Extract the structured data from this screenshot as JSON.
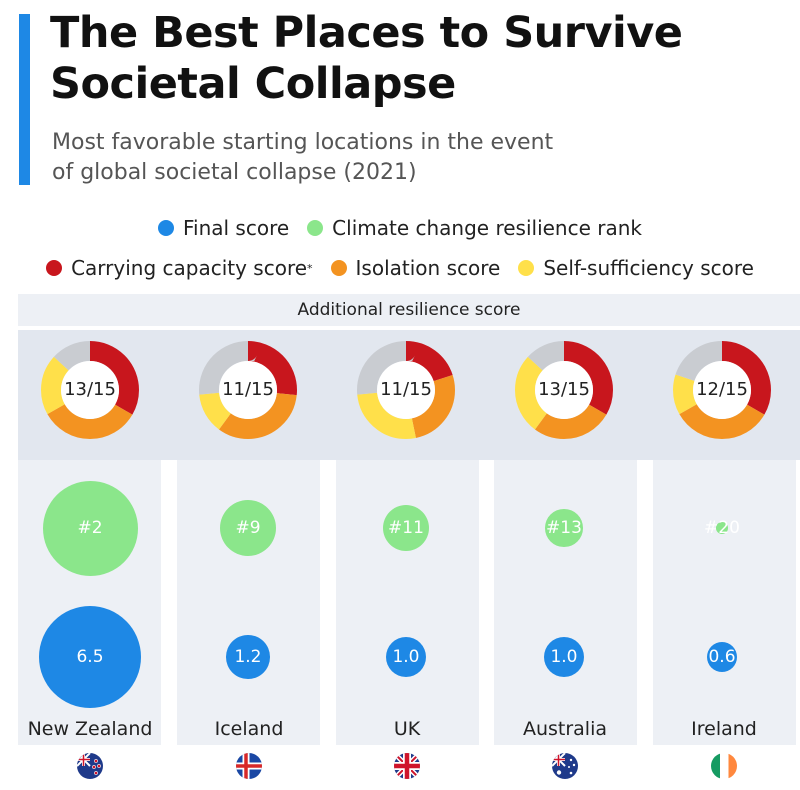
{
  "header": {
    "title_line1": "The Best Places to Survive",
    "title_line2": "Societal Collapse",
    "subtitle_line1": "Most favorable starting locations in the event",
    "subtitle_line2": "of global societal collapse (2021)"
  },
  "legend": {
    "final": "Final score",
    "climate": "Climate change resilience rank",
    "carrying": "Carrying capacity score",
    "carrying_mark": "*",
    "isolation": "Isolation score",
    "selfsufficiency": "Self-sufficiency score"
  },
  "colors": {
    "final": "#1e88e5",
    "climate": "#8be68b",
    "carrying": "#c8161d",
    "isolation": "#f39321",
    "selfsufficiency": "#ffe04a",
    "remainder": "#c9ccd1"
  },
  "section_label": "Additional resilience score",
  "chart_data": {
    "type": "bubble",
    "categories": [
      "New Zealand",
      "Iceland",
      "UK",
      "Australia",
      "Ireland"
    ],
    "resilience_score_max": 15,
    "series": [
      {
        "name": "Final score",
        "values": [
          6.5,
          1.2,
          1.0,
          1.0,
          0.6
        ],
        "labels": [
          "6.5",
          "1.2",
          "1.0",
          "1.0",
          "0.6"
        ]
      },
      {
        "name": "Climate change resilience rank",
        "values": [
          2,
          9,
          11,
          13,
          20
        ],
        "labels": [
          "#2",
          "#9",
          "#11",
          "#13",
          "#20"
        ]
      }
    ],
    "additional_resilience": [
      {
        "country": "New Zealand",
        "label": "13/15",
        "carrying": 5,
        "isolation": 5,
        "selfsufficiency": 3
      },
      {
        "country": "Iceland",
        "label": "11/15",
        "carrying": 4,
        "isolation": 5,
        "selfsufficiency": 2
      },
      {
        "country": "UK",
        "label": "11/15",
        "carrying": 3,
        "isolation": 4,
        "selfsufficiency": 4
      },
      {
        "country": "Australia",
        "label": "13/15",
        "carrying": 5,
        "isolation": 4,
        "selfsufficiency": 4
      },
      {
        "country": "Ireland",
        "label": "12/15",
        "carrying": 5,
        "isolation": 5,
        "selfsufficiency": 2
      }
    ]
  },
  "flags": [
    "flag-new-zealand",
    "flag-iceland",
    "flag-uk",
    "flag-australia",
    "flag-ireland"
  ]
}
